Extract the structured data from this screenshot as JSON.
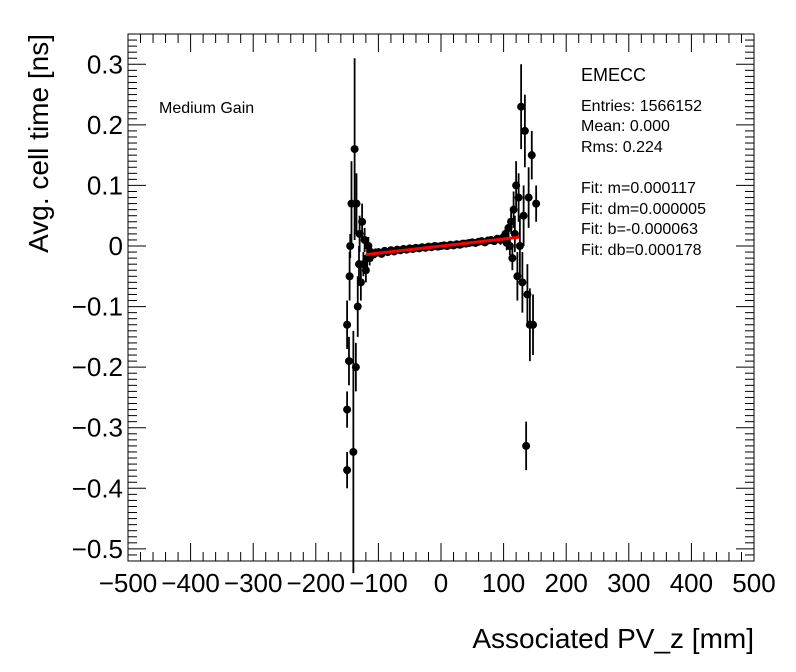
{
  "chart_data": {
    "type": "scatter",
    "xlabel": "Associated PV_z [mm]",
    "ylabel": "Avg. cell time [ns]",
    "xlim": [
      -500,
      500
    ],
    "ylim": [
      -0.52,
      0.35
    ],
    "x_ticks": [
      -500,
      -400,
      -300,
      -200,
      -100,
      0,
      100,
      200,
      300,
      400,
      500
    ],
    "y_ticks": [
      -0.5,
      -0.4,
      -0.3,
      -0.2,
      -0.1,
      0,
      0.1,
      0.2,
      0.3
    ],
    "x_tick_labels": [
      "−500",
      "−400",
      "−300",
      "−200",
      "−100",
      "0",
      "100",
      "200",
      "300",
      "400",
      "500"
    ],
    "y_tick_labels": [
      "−0.5",
      "−0.4",
      "−0.3",
      "−0.2",
      "−0.1",
      "0",
      "0.1",
      "0.2",
      "0.3"
    ],
    "grid": false,
    "gain_label": "Medium Gain",
    "stats": {
      "partition": "EMECC",
      "entries": "Entries: 1566152",
      "mean": "Mean: 0.000",
      "rms": "Rms: 0.224",
      "fit_m": "Fit: m=0.000117",
      "fit_dm": "Fit: dm=0.000005",
      "fit_b": "Fit: b=-0.000063",
      "fit_db": "Fit: db=0.000178"
    },
    "fit_line": {
      "x_from": -120,
      "x_to": 125,
      "slope": 0.000117,
      "intercept": -6.3e-05,
      "color": "#ff0000"
    },
    "marker_color": "#000000",
    "points": [
      {
        "x": -150,
        "y": -0.37,
        "err": 0.03
      },
      {
        "x": -150,
        "y": -0.27,
        "err": 0.03
      },
      {
        "x": -150,
        "y": -0.13,
        "err": 0.04
      },
      {
        "x": -147,
        "y": -0.19,
        "err": 0.04
      },
      {
        "x": -146,
        "y": -0.05,
        "err": 0.04
      },
      {
        "x": -145,
        "y": 0.0,
        "err": 0.02
      },
      {
        "x": -143,
        "y": 0.07,
        "err": 0.07
      },
      {
        "x": -140,
        "y": -0.34,
        "err": 0.2
      },
      {
        "x": -138,
        "y": 0.16,
        "err": 0.15
      },
      {
        "x": -136,
        "y": -0.2,
        "err": 0.04
      },
      {
        "x": -135,
        "y": 0.07,
        "err": 0.05
      },
      {
        "x": -133,
        "y": -0.1,
        "err": 0.05
      },
      {
        "x": -131,
        "y": -0.03,
        "err": 0.03
      },
      {
        "x": -130,
        "y": 0.02,
        "err": 0.03
      },
      {
        "x": -128,
        "y": -0.06,
        "err": 0.03
      },
      {
        "x": -126,
        "y": 0.04,
        "err": 0.03
      },
      {
        "x": -124,
        "y": -0.03,
        "err": 0.02
      },
      {
        "x": -122,
        "y": 0.01,
        "err": 0.02
      },
      {
        "x": -120,
        "y": -0.04,
        "err": 0.02
      },
      {
        "x": -118,
        "y": -0.02,
        "err": 0.015
      },
      {
        "x": -116,
        "y": 0.0,
        "err": 0.015
      },
      {
        "x": -114,
        "y": -0.02,
        "err": 0.012
      },
      {
        "x": -112,
        "y": -0.01,
        "err": 0.01
      },
      {
        "x": -110,
        "y": -0.015,
        "err": 0.01
      },
      {
        "x": -105,
        "y": -0.012,
        "err": 0.008
      },
      {
        "x": -100,
        "y": -0.01,
        "err": 0.006
      },
      {
        "x": -95,
        "y": -0.013,
        "err": 0.005
      },
      {
        "x": -90,
        "y": -0.008,
        "err": 0.005
      },
      {
        "x": -85,
        "y": -0.01,
        "err": 0.004
      },
      {
        "x": -80,
        "y": -0.007,
        "err": 0.004
      },
      {
        "x": -75,
        "y": -0.009,
        "err": 0.004
      },
      {
        "x": -70,
        "y": -0.006,
        "err": 0.003
      },
      {
        "x": -65,
        "y": -0.007,
        "err": 0.003
      },
      {
        "x": -60,
        "y": -0.005,
        "err": 0.003
      },
      {
        "x": -55,
        "y": -0.006,
        "err": 0.003
      },
      {
        "x": -50,
        "y": -0.004,
        "err": 0.003
      },
      {
        "x": -45,
        "y": -0.005,
        "err": 0.003
      },
      {
        "x": -40,
        "y": -0.003,
        "err": 0.003
      },
      {
        "x": -35,
        "y": -0.004,
        "err": 0.003
      },
      {
        "x": -30,
        "y": -0.002,
        "err": 0.003
      },
      {
        "x": -25,
        "y": -0.003,
        "err": 0.003
      },
      {
        "x": -20,
        "y": -0.001,
        "err": 0.003
      },
      {
        "x": -15,
        "y": -0.002,
        "err": 0.003
      },
      {
        "x": -10,
        "y": 0.0,
        "err": 0.003
      },
      {
        "x": -5,
        "y": -0.001,
        "err": 0.003
      },
      {
        "x": 0,
        "y": 0.0,
        "err": 0.003
      },
      {
        "x": 5,
        "y": 0.001,
        "err": 0.003
      },
      {
        "x": 10,
        "y": 0.0,
        "err": 0.003
      },
      {
        "x": 15,
        "y": 0.002,
        "err": 0.003
      },
      {
        "x": 20,
        "y": 0.001,
        "err": 0.003
      },
      {
        "x": 25,
        "y": 0.003,
        "err": 0.003
      },
      {
        "x": 30,
        "y": 0.002,
        "err": 0.003
      },
      {
        "x": 35,
        "y": 0.004,
        "err": 0.003
      },
      {
        "x": 40,
        "y": 0.004,
        "err": 0.003
      },
      {
        "x": 45,
        "y": 0.005,
        "err": 0.003
      },
      {
        "x": 50,
        "y": 0.006,
        "err": 0.003
      },
      {
        "x": 55,
        "y": 0.005,
        "err": 0.003
      },
      {
        "x": 60,
        "y": 0.007,
        "err": 0.004
      },
      {
        "x": 65,
        "y": 0.008,
        "err": 0.004
      },
      {
        "x": 70,
        "y": 0.006,
        "err": 0.004
      },
      {
        "x": 75,
        "y": 0.009,
        "err": 0.004
      },
      {
        "x": 80,
        "y": 0.01,
        "err": 0.005
      },
      {
        "x": 85,
        "y": 0.008,
        "err": 0.005
      },
      {
        "x": 90,
        "y": 0.012,
        "err": 0.006
      },
      {
        "x": 95,
        "y": 0.01,
        "err": 0.008
      },
      {
        "x": 100,
        "y": 0.015,
        "err": 0.01
      },
      {
        "x": 103,
        "y": 0.02,
        "err": 0.012
      },
      {
        "x": 105,
        "y": 0.005,
        "err": 0.012
      },
      {
        "x": 108,
        "y": 0.03,
        "err": 0.015
      },
      {
        "x": 110,
        "y": 0.0,
        "err": 0.015
      },
      {
        "x": 112,
        "y": 0.04,
        "err": 0.02
      },
      {
        "x": 114,
        "y": -0.02,
        "err": 0.02
      },
      {
        "x": 116,
        "y": 0.06,
        "err": 0.03
      },
      {
        "x": 118,
        "y": 0.02,
        "err": 0.03
      },
      {
        "x": 120,
        "y": 0.1,
        "err": 0.04
      },
      {
        "x": 122,
        "y": -0.05,
        "err": 0.04
      },
      {
        "x": 124,
        "y": 0.08,
        "err": 0.04
      },
      {
        "x": 126,
        "y": 0.0,
        "err": 0.05
      },
      {
        "x": 128,
        "y": 0.23,
        "err": 0.07
      },
      {
        "x": 130,
        "y": -0.06,
        "err": 0.05
      },
      {
        "x": 132,
        "y": 0.05,
        "err": 0.05
      },
      {
        "x": 134,
        "y": 0.19,
        "err": 0.06
      },
      {
        "x": 136,
        "y": -0.33,
        "err": 0.04
      },
      {
        "x": 138,
        "y": -0.08,
        "err": 0.05
      },
      {
        "x": 140,
        "y": 0.08,
        "err": 0.05
      },
      {
        "x": 142,
        "y": -0.13,
        "err": 0.06
      },
      {
        "x": 145,
        "y": 0.15,
        "err": 0.04
      },
      {
        "x": 147,
        "y": -0.13,
        "err": 0.05
      },
      {
        "x": 152,
        "y": 0.07,
        "err": 0.03
      }
    ]
  }
}
